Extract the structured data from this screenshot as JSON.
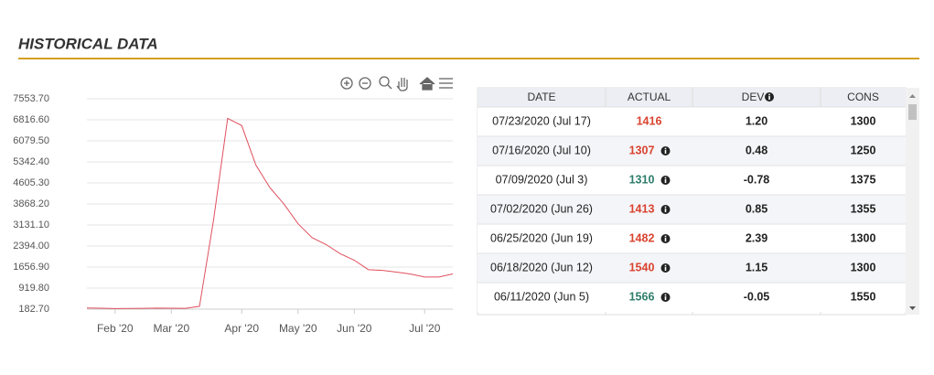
{
  "header": {
    "title": "HISTORICAL DATA"
  },
  "chart_data": {
    "type": "line",
    "categories": [
      null,
      null,
      "Feb '20",
      null,
      null,
      null,
      "Mar '20",
      null,
      null,
      null,
      null,
      "Apr '20",
      null,
      null,
      null,
      "May '20",
      null,
      null,
      null,
      "Jun '20",
      null,
      null,
      null,
      null,
      "Jul '20",
      null,
      null
    ],
    "series": [
      {
        "color": "#e0505e",
        "values": [
          223,
          216,
          202,
          205,
          210,
          219,
          216,
          211,
          282,
          3307,
          6867,
          6615,
          5237,
          4442,
          3867,
          3176,
          2687,
          2446,
          2123,
          1897,
          1566,
          1540,
          1482,
          1413,
          1310,
          1307,
          1416
        ]
      }
    ],
    "ylim": [
      182.7,
      7553.7
    ],
    "yticks": [
      {
        "value": 182.7,
        "label": "182.70"
      },
      {
        "value": 919.8,
        "label": "919.80"
      },
      {
        "value": 1656.9,
        "label": "1656.90"
      },
      {
        "value": 2394,
        "label": "2394.00"
      },
      {
        "value": 3131.1,
        "label": "3131.10"
      },
      {
        "value": 3868.2,
        "label": "3868.20"
      },
      {
        "value": 4605.3,
        "label": "4605.30"
      },
      {
        "value": 5342.4,
        "label": "5342.40"
      },
      {
        "value": 6079.5,
        "label": "6079.50"
      },
      {
        "value": 6816.6,
        "label": "6816.60"
      },
      {
        "value": 7553.7,
        "label": "7553.70"
      }
    ],
    "grid": true
  },
  "table": {
    "columns": [
      "DATE",
      "ACTUAL",
      "DEV",
      "CONS"
    ],
    "rows": [
      [
        "07/23/2020 (Jul 17)",
        "1416",
        "1.20",
        "1300"
      ],
      [
        "07/16/2020 (Jul 10)",
        "1307",
        "0.48",
        "1250"
      ],
      [
        "07/09/2020 (Jul 3)",
        "1310",
        "-0.78",
        "1375"
      ],
      [
        "07/02/2020 (Jun 26)",
        "1413",
        "0.85",
        "1355"
      ],
      [
        "06/25/2020 (Jun 19)",
        "1482",
        "2.39",
        "1300"
      ],
      [
        "06/18/2020 (Jun 12)",
        "1540",
        "1.15",
        "1300"
      ],
      [
        "06/11/2020 (Jun 5)",
        "1566",
        "-0.05",
        "1550"
      ]
    ],
    "actual_colors": [
      "#d9432f",
      "#d9432f",
      "#2e7d6b",
      "#d9432f",
      "#d9432f",
      "#d9432f",
      "#2e7d6b"
    ],
    "actual_info": [
      false,
      true,
      true,
      true,
      true,
      true,
      true
    ]
  }
}
